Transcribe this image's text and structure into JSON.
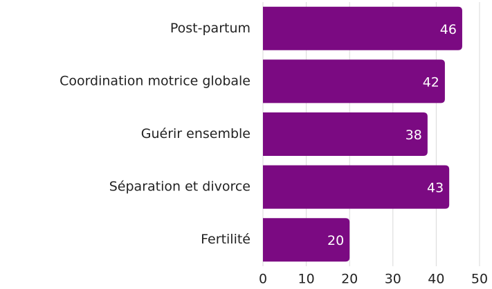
{
  "chart_data": {
    "type": "bar",
    "orientation": "horizontal",
    "categories": [
      "Post-partum",
      "Coordination motrice globale",
      "Guérir ensemble",
      "Séparation et divorce",
      "Fertilité"
    ],
    "values": [
      46,
      42,
      38,
      43,
      20
    ],
    "color": "#7b0a82",
    "xlim": [
      0,
      50
    ],
    "xticks": [
      0,
      10,
      20,
      30,
      40,
      50
    ],
    "grid": true
  }
}
